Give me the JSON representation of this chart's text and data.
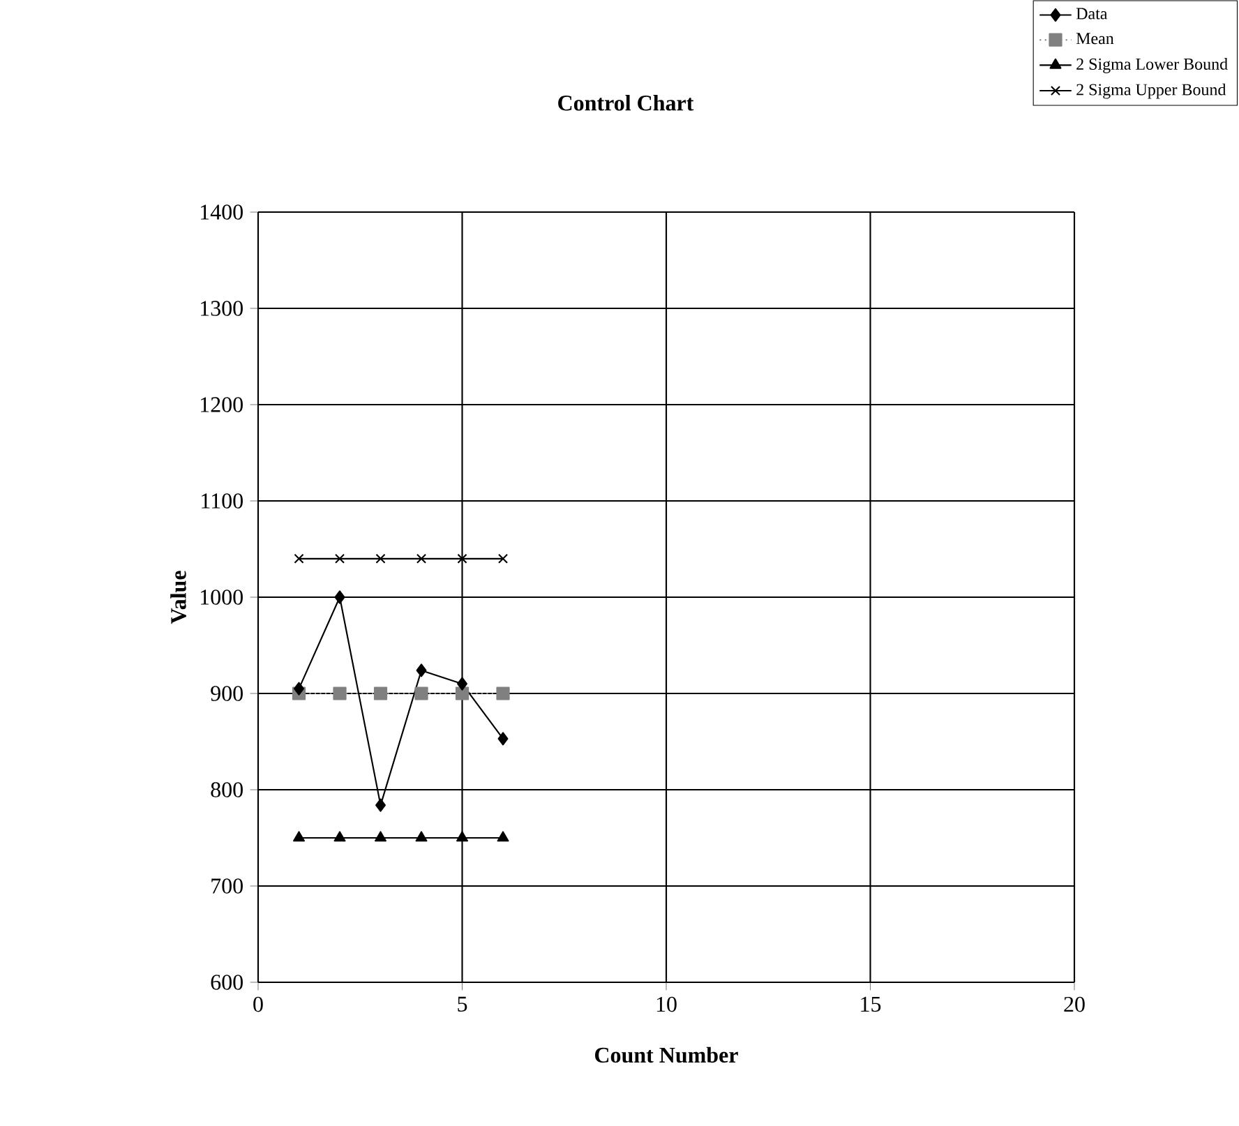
{
  "chart_data": {
    "type": "line",
    "title": "Control Chart",
    "xlabel": "Count Number",
    "ylabel": "Value",
    "x": [
      1,
      2,
      3,
      4,
      5,
      6
    ],
    "series": [
      {
        "name": "Data",
        "color": "#000000",
        "marker": "diamond",
        "line_style": "solid",
        "values": [
          905,
          1000,
          784,
          924,
          910,
          853
        ]
      },
      {
        "name": "Mean",
        "color": "#808080",
        "marker": "square",
        "line_style": "dotted",
        "values": [
          900,
          900,
          900,
          900,
          900,
          900
        ]
      },
      {
        "name": "2 Sigma Lower Bound",
        "color": "#000000",
        "marker": "triangle",
        "line_style": "solid",
        "values": [
          750,
          750,
          750,
          750,
          750,
          750
        ]
      },
      {
        "name": "2 Sigma Upper Bound",
        "color": "#000000",
        "marker": "cross",
        "line_style": "solid",
        "values": [
          1040,
          1040,
          1040,
          1040,
          1040,
          1040
        ]
      }
    ],
    "xlim": [
      0,
      20
    ],
    "xticks": [
      0,
      5,
      10,
      15,
      20
    ],
    "ylim": [
      600,
      1400
    ],
    "yticks": [
      600,
      700,
      800,
      900,
      1000,
      1100,
      1200,
      1300,
      1400
    ],
    "grid": true,
    "legend": "top right"
  }
}
